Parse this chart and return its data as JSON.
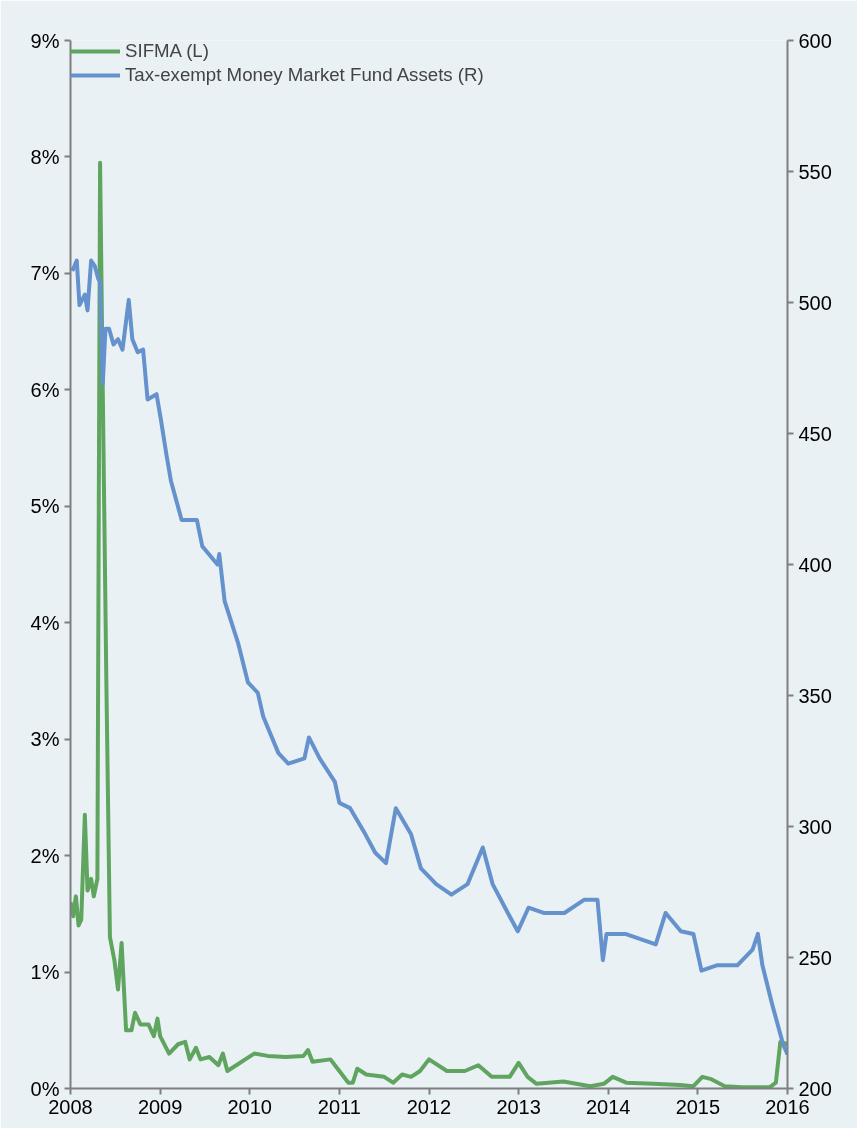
{
  "chart_data": {
    "type": "line",
    "legend": "top left",
    "grid": false,
    "line_style": "solid",
    "marker": "none",
    "xlim": [
      2008,
      2016
    ],
    "xticks": [
      2008,
      2009,
      2010,
      2011,
      2012,
      2013,
      2014,
      2015,
      2016
    ],
    "ylim": [
      0,
      9
    ],
    "yticks": [
      {
        "value": 0,
        "label": "0%"
      },
      {
        "value": 1,
        "label": "1%"
      },
      {
        "value": 2,
        "label": "2%"
      },
      {
        "value": 3,
        "label": "3%"
      },
      {
        "value": 4,
        "label": "4%"
      },
      {
        "value": 5,
        "label": "5%"
      },
      {
        "value": 6,
        "label": "6%"
      },
      {
        "value": 7,
        "label": "7%"
      },
      {
        "value": 8,
        "label": "8%"
      },
      {
        "value": 9,
        "label": "9%"
      }
    ],
    "y2lim": [
      200,
      600
    ],
    "y2ticks": [
      200,
      250,
      300,
      350,
      400,
      450,
      500,
      550,
      600
    ],
    "series": [
      {
        "name": "SIFMA (L)",
        "color": "#5fa55f",
        "x": [
          2008.0,
          2008.03,
          2008.06,
          2008.09,
          2008.12,
          2008.16,
          2008.19,
          2008.23,
          2008.26,
          2008.3,
          2008.33,
          2008.36,
          2008.4,
          2008.44,
          2008.49,
          2008.53,
          2008.57,
          2008.62,
          2008.68,
          2008.72,
          2008.78,
          2008.87,
          2008.93,
          2008.97,
          2009.0,
          2009.1,
          2009.2,
          2009.28,
          2009.33,
          2009.4,
          2009.45,
          2009.55,
          2009.65,
          2009.7,
          2009.75,
          2009.85,
          2009.95,
          2010.05,
          2010.2,
          2010.4,
          2010.6,
          2010.65,
          2010.7,
          2010.9,
          2011.0,
          2011.1,
          2011.15,
          2011.2,
          2011.3,
          2011.5,
          2011.6,
          2011.7,
          2011.8,
          2011.9,
          2012.0,
          2012.2,
          2012.4,
          2012.55,
          2012.7,
          2012.9,
          2013.0,
          2013.1,
          2013.2,
          2013.5,
          2013.8,
          2013.95,
          2014.05,
          2014.2,
          2014.5,
          2014.8,
          2014.95,
          2015.05,
          2015.15,
          2015.3,
          2015.5,
          2015.8,
          2015.87,
          2015.92,
          2016.0
        ],
        "values": [
          1.6,
          1.48,
          1.65,
          1.4,
          1.45,
          2.35,
          1.7,
          1.8,
          1.65,
          1.8,
          7.95,
          6.0,
          3.5,
          1.3,
          1.1,
          0.85,
          1.25,
          0.5,
          0.5,
          0.65,
          0.55,
          0.55,
          0.45,
          0.6,
          0.45,
          0.3,
          0.38,
          0.4,
          0.25,
          0.35,
          0.25,
          0.27,
          0.2,
          0.3,
          0.15,
          0.2,
          0.25,
          0.3,
          0.28,
          0.27,
          0.28,
          0.33,
          0.23,
          0.25,
          0.15,
          0.05,
          0.05,
          0.17,
          0.12,
          0.1,
          0.05,
          0.12,
          0.1,
          0.15,
          0.25,
          0.15,
          0.15,
          0.2,
          0.1,
          0.1,
          0.22,
          0.1,
          0.04,
          0.06,
          0.02,
          0.04,
          0.1,
          0.05,
          0.04,
          0.03,
          0.02,
          0.1,
          0.08,
          0.02,
          0.01,
          0.01,
          0.05,
          0.4,
          0.38
        ]
      },
      {
        "name": "Tax-exempt Money Market Fund Assets (R)",
        "color": "#6592cd",
        "axis": "y2",
        "x": [
          2008.02,
          2008.07,
          2008.1,
          2008.16,
          2008.19,
          2008.23,
          2008.27,
          2008.31,
          2008.33,
          2008.36,
          2008.39,
          2008.43,
          2008.48,
          2008.53,
          2008.58,
          2008.65,
          2008.69,
          2008.75,
          2008.81,
          2008.86,
          2008.96,
          2009.01,
          2009.07,
          2009.12,
          2009.24,
          2009.41,
          2009.47,
          2009.64,
          2009.66,
          2009.72,
          2009.87,
          2009.98,
          2010.09,
          2010.15,
          2010.32,
          2010.43,
          2010.61,
          2010.66,
          2010.78,
          2010.95,
          2011.0,
          2011.12,
          2011.29,
          2011.4,
          2011.52,
          2011.63,
          2011.8,
          2011.91,
          2012.08,
          2012.25,
          2012.43,
          2012.6,
          2012.71,
          2012.88,
          2012.99,
          2013.11,
          2013.28,
          2013.51,
          2013.73,
          2013.88,
          2013.94,
          2013.98,
          2014.19,
          2014.53,
          2014.64,
          2014.81,
          2014.95,
          2015.04,
          2015.21,
          2015.44,
          2015.61,
          2015.67,
          2015.72,
          2015.83,
          2015.95,
          2016.0
        ],
        "values": [
          512,
          516,
          499,
          503,
          497,
          516,
          514,
          509,
          508,
          469,
          490,
          490,
          484,
          486,
          482,
          501,
          486,
          481,
          482,
          463,
          465,
          455,
          442,
          432,
          417,
          417,
          407,
          400,
          404,
          386,
          370,
          355,
          351,
          342,
          328,
          324,
          326,
          334,
          326,
          317,
          309,
          307,
          297,
          290,
          286,
          307,
          297,
          284,
          278,
          274,
          278,
          292,
          278,
          267,
          260,
          269,
          267,
          267,
          272,
          272,
          249,
          259,
          259,
          255,
          267,
          260,
          259,
          245,
          247,
          247,
          253,
          259,
          247,
          232,
          217,
          213
        ]
      }
    ]
  }
}
